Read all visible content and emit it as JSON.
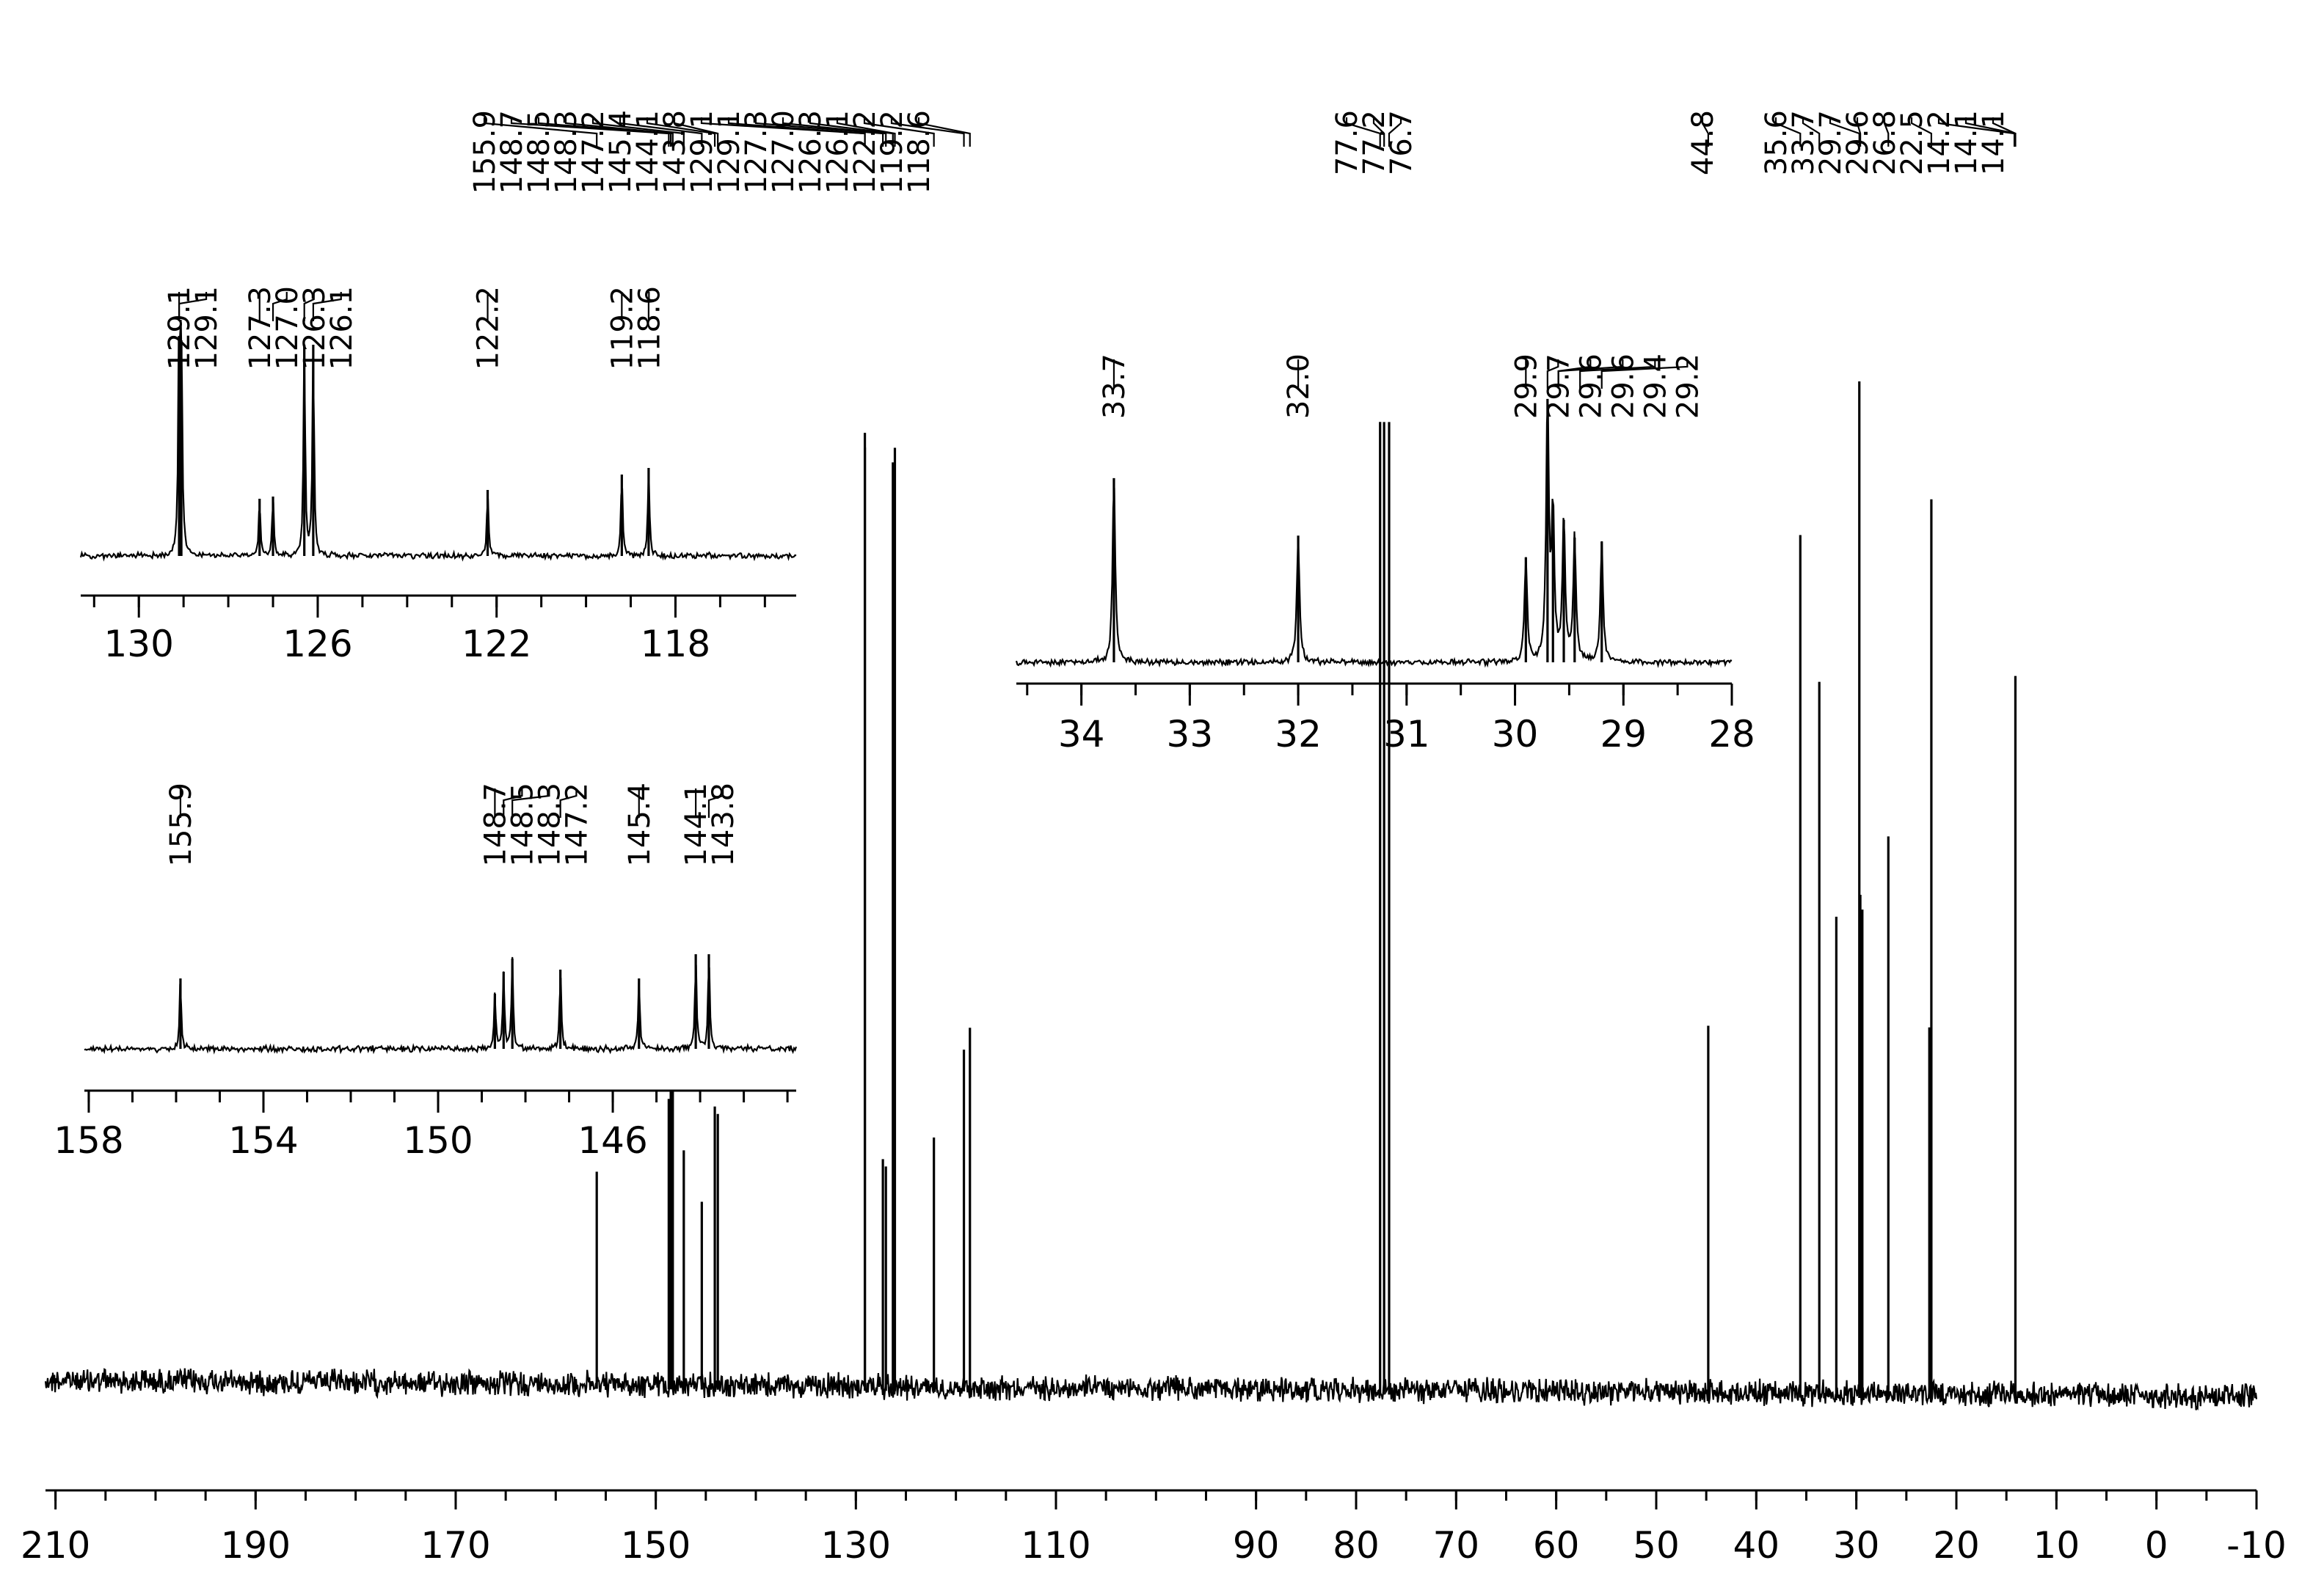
{
  "chart_data": {
    "type": "line",
    "title": "",
    "xlabel": "",
    "ylabel": "",
    "x_reversed": true,
    "main": {
      "xlim": [
        211,
        -10
      ],
      "ticks": [
        "210",
        "190",
        "170",
        "150",
        "130",
        "110",
        "90",
        "80",
        "70",
        "60",
        "50",
        "40",
        "30",
        "20",
        "10",
        "0",
        "-10"
      ],
      "tick_values": [
        210,
        190,
        170,
        150,
        130,
        110,
        90,
        80,
        70,
        60,
        50,
        40,
        30,
        20,
        10,
        0,
        -10
      ],
      "peaks": [
        {
          "ppm": 155.9,
          "h": 0.29
        },
        {
          "ppm": 148.7,
          "h": 0.39
        },
        {
          "ppm": 148.5,
          "h": 0.4
        },
        {
          "ppm": 148.3,
          "h": 0.4
        },
        {
          "ppm": 147.2,
          "h": 0.32
        },
        {
          "ppm": 145.4,
          "h": 0.25
        },
        {
          "ppm": 144.1,
          "h": 0.38
        },
        {
          "ppm": 143.8,
          "h": 0.37
        },
        {
          "ppm": 129.1,
          "h": 1.3
        },
        {
          "ppm": 129.1,
          "h": 1.28
        },
        {
          "ppm": 127.3,
          "h": 0.31
        },
        {
          "ppm": 127.0,
          "h": 0.3
        },
        {
          "ppm": 126.3,
          "h": 1.26
        },
        {
          "ppm": 126.1,
          "h": 1.28
        },
        {
          "ppm": 122.2,
          "h": 0.34
        },
        {
          "ppm": 119.2,
          "h": 0.46
        },
        {
          "ppm": 118.6,
          "h": 0.49
        },
        {
          "ppm": 77.6,
          "h": 1.32
        },
        {
          "ppm": 77.2,
          "h": 1.32
        },
        {
          "ppm": 76.7,
          "h": 1.32
        },
        {
          "ppm": 44.8,
          "h": 0.5
        },
        {
          "ppm": 35.6,
          "h": 1.17
        },
        {
          "ppm": 33.7,
          "h": 0.97
        },
        {
          "ppm": 32.0,
          "h": 0.65
        },
        {
          "ppm": 29.7,
          "h": 1.38
        },
        {
          "ppm": 29.6,
          "h": 0.68
        },
        {
          "ppm": 29.4,
          "h": 0.66
        },
        {
          "ppm": 26.8,
          "h": 0.76
        },
        {
          "ppm": 22.5,
          "h": 1.22
        },
        {
          "ppm": 22.7,
          "h": 0.5
        },
        {
          "ppm": 14.1,
          "h": 0.98
        }
      ],
      "labels": [
        "155.9",
        "148.7",
        "148.5",
        "148.3",
        "147.2",
        "145.4",
        "144.1",
        "143.8",
        "129.1",
        "129.1",
        "127.3",
        "127.0",
        "126.3",
        "126.1",
        "122.2",
        "119.2",
        "118.6",
        "77.6",
        "77.2",
        "76.7",
        "44.8",
        "35.6",
        "33.7",
        "29.7",
        "29.6",
        "26.8",
        "22.5",
        "14.2",
        "14.1",
        "14.1"
      ],
      "label_ppm": [
        155.9,
        148.7,
        148.5,
        148.3,
        147.2,
        145.4,
        144.1,
        143.8,
        129.1,
        129.1,
        127.3,
        127.0,
        126.3,
        126.1,
        122.2,
        119.2,
        118.6,
        77.6,
        77.2,
        76.7,
        44.8,
        35.6,
        33.7,
        29.7,
        29.6,
        26.8,
        22.5,
        14.2,
        14.1,
        14.1
      ]
    },
    "inset_aromatic": {
      "xlim": [
        131.3,
        115.3
      ],
      "ticks": [
        "130",
        "126",
        "122",
        "118"
      ],
      "tick_values": [
        130,
        126,
        122,
        118
      ],
      "peaks": [
        {
          "ppm": 129.1,
          "h": 1.0
        },
        {
          "ppm": 129.05,
          "h": 0.98
        },
        {
          "ppm": 127.3,
          "h": 0.26
        },
        {
          "ppm": 127.0,
          "h": 0.27
        },
        {
          "ppm": 126.3,
          "h": 0.96
        },
        {
          "ppm": 126.1,
          "h": 0.96
        },
        {
          "ppm": 122.2,
          "h": 0.3
        },
        {
          "ppm": 119.2,
          "h": 0.37
        },
        {
          "ppm": 118.6,
          "h": 0.4
        }
      ],
      "labels": [
        "129.1",
        "129.1",
        "127.3",
        "127.0",
        "126.3",
        "126.1",
        "122.2",
        "119.2",
        "118.6"
      ],
      "label_ppm": [
        129.1,
        129.1,
        127.3,
        127.0,
        126.3,
        126.1,
        122.2,
        119.2,
        118.6
      ]
    },
    "inset_low": {
      "xlim": [
        158.1,
        141.8
      ],
      "ticks": [
        "158",
        "154",
        "150",
        "146"
      ],
      "tick_values": [
        158,
        154,
        150,
        146
      ],
      "peaks": [
        {
          "ppm": 155.9,
          "h": 0.32
        },
        {
          "ppm": 148.7,
          "h": 0.25
        },
        {
          "ppm": 148.5,
          "h": 0.35
        },
        {
          "ppm": 148.3,
          "h": 0.41
        },
        {
          "ppm": 147.2,
          "h": 0.36
        },
        {
          "ppm": 145.4,
          "h": 0.32
        },
        {
          "ppm": 144.1,
          "h": 0.43
        },
        {
          "ppm": 143.8,
          "h": 0.43
        }
      ],
      "labels": [
        "155.9",
        "148.7",
        "148.5",
        "148.3",
        "147.2",
        "145.4",
        "144.1",
        "143.8"
      ],
      "label_ppm": [
        155.9,
        148.7,
        148.5,
        148.3,
        147.2,
        145.4,
        144.1,
        143.8
      ]
    },
    "inset_aliphatic": {
      "xlim": [
        34.6,
        28.0
      ],
      "ticks": [
        "34",
        "33",
        "32",
        "31",
        "30",
        "29",
        "28"
      ],
      "tick_values": [
        34,
        33,
        32,
        31,
        30,
        29,
        28
      ],
      "peaks": [
        {
          "ppm": 33.7,
          "h": 0.93
        },
        {
          "ppm": 32.0,
          "h": 0.64
        },
        {
          "ppm": 29.9,
          "h": 0.53
        },
        {
          "ppm": 29.7,
          "h": 1.33
        },
        {
          "ppm": 29.65,
          "h": 0.75
        },
        {
          "ppm": 29.55,
          "h": 0.72
        },
        {
          "ppm": 29.45,
          "h": 0.63
        },
        {
          "ppm": 29.2,
          "h": 0.61
        }
      ],
      "labels": [
        "33.7",
        "32.0",
        "29.9",
        "29.7",
        "29.6",
        "29.6",
        "29.4",
        "29.2"
      ],
      "label_ppm": [
        33.7,
        32.0,
        29.9,
        29.7,
        29.6,
        29.6,
        29.4,
        29.2
      ]
    }
  }
}
